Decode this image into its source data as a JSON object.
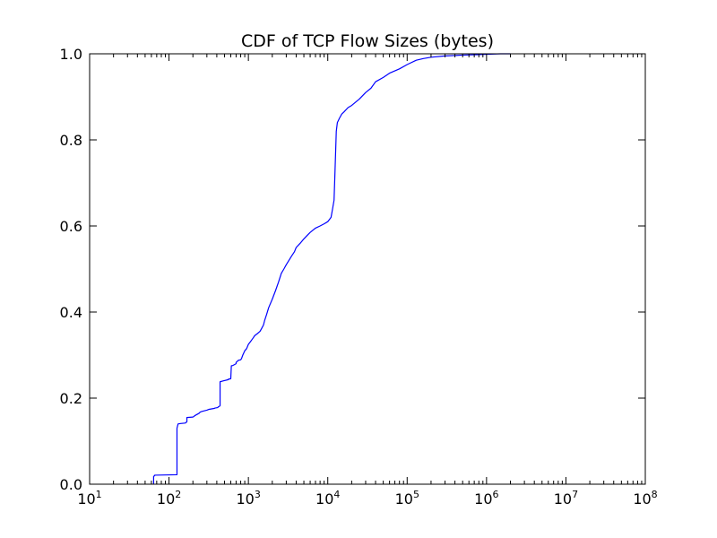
{
  "chart_data": {
    "type": "line",
    "title": "CDF of TCP Flow Sizes (bytes)",
    "xlabel": "",
    "ylabel": "",
    "x_scale": "log",
    "xlim": [
      10,
      100000000
    ],
    "ylim": [
      0.0,
      1.0
    ],
    "grid": false,
    "legend": "none",
    "line_color": "#0000ff",
    "x_ticks": [
      {
        "value": 10,
        "base": "10",
        "exp": "1"
      },
      {
        "value": 100,
        "base": "10",
        "exp": "2"
      },
      {
        "value": 1000,
        "base": "10",
        "exp": "3"
      },
      {
        "value": 10000,
        "base": "10",
        "exp": "4"
      },
      {
        "value": 100000,
        "base": "10",
        "exp": "5"
      },
      {
        "value": 1000000,
        "base": "10",
        "exp": "6"
      },
      {
        "value": 10000000,
        "base": "10",
        "exp": "7"
      },
      {
        "value": 100000000,
        "base": "10",
        "exp": "8"
      }
    ],
    "y_ticks": [
      {
        "value": 0.0,
        "label": "0.0"
      },
      {
        "value": 0.2,
        "label": "0.2"
      },
      {
        "value": 0.4,
        "label": "0.4"
      },
      {
        "value": 0.6,
        "label": "0.6"
      },
      {
        "value": 0.8,
        "label": "0.8"
      },
      {
        "value": 1.0,
        "label": "1.0"
      }
    ],
    "series": [
      {
        "x": [
          64,
          64,
          66,
          66,
          126,
          126,
          130,
          140,
          160,
          168,
          168,
          200,
          205,
          208,
          210,
          240,
          245,
          250,
          270,
          300,
          320,
          370,
          380,
          410,
          420,
          440,
          440,
          480,
          560,
          560,
          600,
          610,
          640,
          700,
          700,
          750,
          800,
          820,
          850,
          900,
          950,
          1000,
          1050,
          1100,
          1150,
          1200,
          1300,
          1400,
          1450,
          1500,
          1550,
          1600,
          1700,
          1800,
          2000,
          2200,
          2400,
          2600,
          2800,
          3000,
          3500,
          3800,
          4000,
          4500,
          5000,
          5500,
          6000,
          7000,
          8000,
          9000,
          10000,
          11000,
          11500,
          12000,
          12300,
          12600,
          12800,
          13200,
          13600,
          14000,
          15000,
          16000,
          18000,
          20000,
          25000,
          30000,
          35000,
          40000,
          50000,
          60000,
          80000,
          100000,
          130000,
          160000,
          200000,
          300000,
          500000,
          800000,
          1000000,
          1500000,
          2000000
        ],
        "y": [
          0.0,
          0.018,
          0.02,
          0.021,
          0.022,
          0.13,
          0.14,
          0.141,
          0.142,
          0.145,
          0.155,
          0.156,
          0.157,
          0.158,
          0.159,
          0.165,
          0.167,
          0.168,
          0.17,
          0.172,
          0.174,
          0.176,
          0.177,
          0.178,
          0.18,
          0.182,
          0.238,
          0.24,
          0.243,
          0.244,
          0.245,
          0.275,
          0.276,
          0.28,
          0.283,
          0.288,
          0.289,
          0.292,
          0.3,
          0.31,
          0.315,
          0.325,
          0.33,
          0.335,
          0.34,
          0.345,
          0.35,
          0.355,
          0.36,
          0.365,
          0.37,
          0.38,
          0.395,
          0.41,
          0.43,
          0.45,
          0.47,
          0.49,
          0.5,
          0.51,
          0.53,
          0.54,
          0.55,
          0.56,
          0.57,
          0.578,
          0.585,
          0.595,
          0.6,
          0.605,
          0.61,
          0.62,
          0.64,
          0.66,
          0.72,
          0.78,
          0.82,
          0.84,
          0.845,
          0.85,
          0.86,
          0.865,
          0.875,
          0.88,
          0.895,
          0.91,
          0.92,
          0.935,
          0.945,
          0.955,
          0.965,
          0.975,
          0.985,
          0.989,
          0.992,
          0.995,
          0.997,
          0.998,
          0.999,
          1.0,
          1.0
        ]
      }
    ]
  }
}
